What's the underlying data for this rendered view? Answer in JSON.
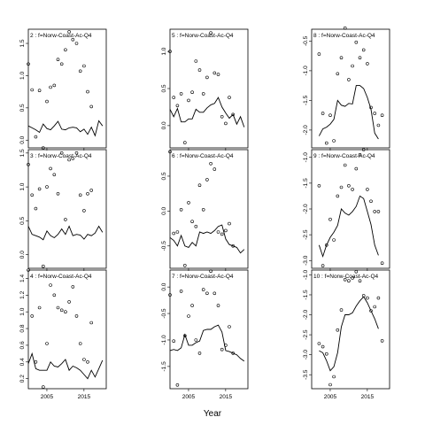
{
  "chart_data": {
    "type": "line",
    "xlabel": "Year",
    "point_style": "open-circle",
    "line_style": "solid-black",
    "panels": [
      {
        "title": "2 : f=Norw-Coast-Ac-Q4",
        "x": [
          2000,
          2001,
          2002,
          2003,
          2004,
          2005,
          2006,
          2007,
          2008,
          2009,
          2010,
          2011,
          2012,
          2013,
          2014,
          2015,
          2016,
          2017,
          2018,
          2019,
          2020
        ],
        "fitted": [
          0.22,
          0.19,
          0.16,
          0.12,
          0.25,
          0.18,
          0.16,
          0.22,
          0.29,
          0.17,
          0.16,
          0.19,
          0.2,
          0.19,
          0.13,
          0.17,
          0.09,
          0.2,
          0.07,
          0.3,
          0.22
        ],
        "observed": [
          1.18,
          0.78,
          0.05,
          0.77,
          -0.12,
          0.6,
          0.82,
          0.85,
          1.25,
          1.18,
          1.4,
          1.68,
          1.56,
          1.5,
          1.07,
          1.15,
          0.75,
          0.52
        ],
        "obs_x": [
          2000,
          2001,
          2002,
          2003,
          2004,
          2005,
          2006,
          2007,
          2008,
          2009,
          2010,
          2011,
          2012,
          2013,
          2014,
          2015,
          2016,
          2017
        ],
        "ylim": [
          -0.12,
          1.72
        ],
        "yticks": [
          0.0,
          0.5,
          1.0,
          1.5
        ],
        "ytick_labels": [
          "0.0",
          "0.5",
          "1.0",
          "1.5"
        ]
      },
      {
        "title": "5 : f=Norw-Coast-Ac-Q4",
        "x": [
          2000,
          2001,
          2002,
          2003,
          2004,
          2005,
          2006,
          2007,
          2008,
          2009,
          2010,
          2011,
          2012,
          2013,
          2014,
          2015,
          2016,
          2017,
          2018,
          2019,
          2020
        ],
        "fitted": [
          0.22,
          0.12,
          0.23,
          0.05,
          0.05,
          0.09,
          0.09,
          0.22,
          0.18,
          0.18,
          0.24,
          0.28,
          0.3,
          0.38,
          0.25,
          0.17,
          0.1,
          0.15,
          0.02,
          0.12,
          -0.02
        ],
        "observed": [
          1.0,
          0.38,
          0.27,
          0.43,
          -0.23,
          0.34,
          0.45,
          0.87,
          0.75,
          0.43,
          0.65,
          1.25,
          0.71,
          0.69,
          0.12,
          0.03,
          0.38,
          0.15
        ],
        "obs_x": [
          2000,
          2001,
          2002,
          2003,
          2004,
          2005,
          2006,
          2007,
          2008,
          2009,
          2010,
          2011,
          2012,
          2013,
          2014,
          2015,
          2016,
          2017
        ],
        "ylim": [
          -0.3,
          1.3
        ],
        "yticks": [
          0.0,
          0.5,
          1.0
        ],
        "ytick_labels": [
          "0.0",
          "0.5",
          "1.0"
        ]
      },
      {
        "title": "8 : f=Norw-Coast-Ac-Q4",
        "x": [
          2002,
          2003,
          2004,
          2005,
          2006,
          2007,
          2008,
          2009,
          2010,
          2011,
          2012,
          2013,
          2014,
          2015,
          2016,
          2017,
          2018
        ],
        "fitted": [
          -2.1,
          -1.98,
          -1.95,
          -1.9,
          -1.82,
          -1.5,
          -1.58,
          -1.6,
          -1.55,
          -1.56,
          -1.25,
          -1.25,
          -1.3,
          -1.45,
          -1.65,
          -2.05,
          -2.15
        ],
        "observed": [
          -0.72,
          -1.72,
          -2.22,
          -1.75,
          -2.18,
          -1.05,
          -0.78,
          -0.28,
          -1.15,
          -0.92,
          -0.52,
          -0.78,
          -0.65,
          -0.88,
          -1.62,
          -1.72,
          -1.92,
          -1.75
        ],
        "obs_x": [
          2002,
          2003,
          2004,
          2005,
          2006,
          2007,
          2008,
          2009,
          2010,
          2011,
          2012,
          2013,
          2014,
          2015,
          2016,
          2017,
          2018,
          2019
        ],
        "ylim": [
          -2.3,
          -0.3
        ],
        "yticks": [
          -2.0,
          -1.5,
          -1.0,
          -0.5
        ],
        "ytick_labels": [
          "-2.0",
          "-1.5",
          "-1.0",
          "-0.5"
        ]
      },
      {
        "title": "3 : f=Norw-Coast-Ac-Q4",
        "x": [
          2000,
          2001,
          2002,
          2003,
          2004,
          2005,
          2006,
          2007,
          2008,
          2009,
          2010,
          2011,
          2012,
          2013,
          2014,
          2015,
          2016,
          2017,
          2018,
          2019,
          2020
        ],
        "fitted": [
          0.42,
          0.3,
          0.28,
          0.26,
          0.22,
          0.35,
          0.28,
          0.25,
          0.3,
          0.38,
          0.3,
          0.42,
          0.28,
          0.3,
          0.29,
          0.23,
          0.3,
          0.28,
          0.32,
          0.42,
          0.33
        ],
        "observed": [
          1.33,
          0.88,
          0.68,
          0.97,
          -0.17,
          1.0,
          1.27,
          1.18,
          0.9,
          1.5,
          0.52,
          1.4,
          1.42,
          1.5,
          0.88,
          0.65,
          0.9,
          0.95
        ],
        "obs_x": [
          2000,
          2001,
          2002,
          2003,
          2004,
          2005,
          2006,
          2007,
          2008,
          2009,
          2010,
          2011,
          2012,
          2013,
          2014,
          2015,
          2016,
          2017
        ],
        "ylim": [
          -0.2,
          1.55
        ],
        "yticks": [
          0.0,
          0.5,
          1.0,
          1.5
        ],
        "ytick_labels": [
          "0.0",
          "0.5",
          "1.0",
          "1.5"
        ]
      },
      {
        "title": "6 : f=Norw-Coast-Ac-Q4",
        "x": [
          2000,
          2001,
          2002,
          2003,
          2004,
          2005,
          2006,
          2007,
          2008,
          2009,
          2010,
          2011,
          2012,
          2013,
          2014,
          2015,
          2016,
          2017,
          2018,
          2019,
          2020
        ],
        "fitted": [
          -0.38,
          -0.42,
          -0.5,
          -0.35,
          -0.5,
          -0.52,
          -0.45,
          -0.5,
          -0.3,
          -0.32,
          -0.3,
          -0.32,
          -0.28,
          -0.22,
          -0.2,
          -0.4,
          -0.48,
          -0.5,
          -0.52,
          -0.6,
          -0.55
        ],
        "observed": [
          0.85,
          -0.32,
          -0.3,
          0.02,
          -0.78,
          0.12,
          -0.15,
          -0.22,
          0.37,
          0.02,
          0.45,
          0.68,
          0.6,
          -0.3,
          -0.33,
          -0.28,
          -0.18,
          -0.5
        ],
        "obs_x": [
          2000,
          2001,
          2002,
          2003,
          2004,
          2005,
          2006,
          2007,
          2008,
          2009,
          2010,
          2011,
          2012,
          2013,
          2014,
          2015,
          2016,
          2017
        ],
        "ylim": [
          -0.82,
          0.88
        ],
        "yticks": [
          -0.5,
          0.0,
          0.5
        ],
        "ytick_labels": [
          "-0.5",
          "0.0",
          "0.5"
        ]
      },
      {
        "title": "9 : f=Norw-Coast-Ac-Q4",
        "x": [
          2002,
          2003,
          2004,
          2005,
          2006,
          2007,
          2008,
          2009,
          2010,
          2011,
          2012,
          2013,
          2014,
          2015,
          2016,
          2017,
          2018
        ],
        "fitted": [
          -2.7,
          -2.92,
          -2.7,
          -2.55,
          -2.45,
          -2.32,
          -2.0,
          -2.08,
          -2.12,
          -2.05,
          -1.95,
          -1.75,
          -1.8,
          -2.05,
          -2.3,
          -2.7,
          -2.9
        ],
        "observed": [
          -1.55,
          -3.1,
          -2.7,
          -2.2,
          -2.6,
          -1.75,
          -1.58,
          -1.15,
          -1.55,
          -1.62,
          -1.22,
          -0.95,
          -0.85,
          -1.62,
          -1.85,
          -2.05,
          -2.05,
          -3.05
        ],
        "obs_x": [
          2002,
          2003,
          2004,
          2005,
          2006,
          2007,
          2008,
          2009,
          2010,
          2011,
          2012,
          2013,
          2014,
          2015,
          2016,
          2017,
          2018,
          2019
        ],
        "ylim": [
          -3.15,
          -0.85
        ],
        "yticks": [
          -3.0,
          -2.5,
          -2.0,
          -1.5,
          -1.0
        ],
        "ytick_labels": [
          "-3.0",
          "-2.5",
          "-2.0",
          "-1.5",
          "-1.0"
        ]
      },
      {
        "title": "4 : f=Norw-Coast-Ac-Q4",
        "x": [
          2000,
          2001,
          2002,
          2003,
          2004,
          2005,
          2006,
          2007,
          2008,
          2009,
          2010,
          2011,
          2012,
          2013,
          2014,
          2015,
          2016,
          2017,
          2018,
          2019,
          2020
        ],
        "fitted": [
          0.38,
          0.5,
          0.32,
          0.3,
          0.3,
          0.3,
          0.4,
          0.35,
          0.34,
          0.38,
          0.43,
          0.3,
          0.35,
          0.33,
          0.3,
          0.25,
          0.2,
          0.3,
          0.22,
          0.32,
          0.42
        ],
        "observed": [
          1.5,
          0.95,
          0.4,
          1.05,
          0.1,
          0.62,
          1.32,
          1.2,
          1.05,
          1.02,
          1.0,
          1.12,
          1.3,
          0.95,
          0.62,
          0.43,
          0.4,
          0.87
        ],
        "obs_x": [
          2000,
          2001,
          2002,
          2003,
          2004,
          2005,
          2006,
          2007,
          2008,
          2009,
          2010,
          2011,
          2012,
          2013,
          2014,
          2015,
          2016,
          2017
        ],
        "ylim": [
          0.08,
          1.5
        ],
        "yticks": [
          0.2,
          0.4,
          0.6,
          0.8,
          1.0,
          1.2,
          1.4
        ],
        "ytick_labels": [
          "0.2",
          "0.4",
          "0.6",
          "0.8",
          "1.0",
          "1.2",
          "1.4"
        ]
      },
      {
        "title": "7 : f=Norw-Coast-Ac-Q4",
        "x": [
          2000,
          2001,
          2002,
          2003,
          2004,
          2005,
          2006,
          2007,
          2008,
          2009,
          2010,
          2011,
          2012,
          2013,
          2014,
          2015,
          2016,
          2017,
          2018,
          2019,
          2020
        ],
        "fitted": [
          -1.2,
          -1.18,
          -1.2,
          -1.15,
          -0.9,
          -1.1,
          -1.1,
          -1.05,
          -1.02,
          -0.82,
          -0.8,
          -0.8,
          -0.75,
          -0.72,
          -0.85,
          -1.2,
          -1.22,
          -1.25,
          -1.28,
          -1.35,
          -1.4
        ],
        "observed": [
          -0.15,
          -1.02,
          -1.85,
          -0.08,
          -0.92,
          -0.55,
          -0.35,
          -1.0,
          -1.25,
          -0.05,
          -0.12,
          0.3,
          -0.12,
          -0.35,
          -1.18,
          -1.1,
          -0.75,
          -1.25
        ],
        "obs_x": [
          2000,
          2001,
          2002,
          2003,
          2004,
          2005,
          2006,
          2007,
          2008,
          2009,
          2010,
          2011,
          2012,
          2013,
          2014,
          2015,
          2016,
          2017
        ],
        "ylim": [
          -1.92,
          0.32
        ],
        "yticks": [
          -1.5,
          -1.0,
          -0.5,
          0.0
        ],
        "ytick_labels": [
          "-1.5",
          "-1.0",
          "-0.5",
          "0.0"
        ]
      },
      {
        "title": "10 : f=Norw-Coast-Ac-Q4",
        "x": [
          2002,
          2003,
          2004,
          2005,
          2006,
          2007,
          2008,
          2009,
          2010,
          2011,
          2012,
          2013,
          2014,
          2015,
          2016,
          2017,
          2018
        ],
        "fitted": [
          -2.9,
          -2.95,
          -3.15,
          -3.4,
          -3.3,
          -2.95,
          -2.3,
          -2.0,
          -2.0,
          -1.95,
          -1.78,
          -1.65,
          -1.55,
          -1.7,
          -1.9,
          -2.1,
          -2.35
        ],
        "observed": [
          -2.72,
          -2.8,
          -2.98,
          -3.75,
          -3.55,
          -2.38,
          -1.88,
          -1.12,
          -1.15,
          -1.08,
          -0.92,
          -1.15,
          -1.52,
          -1.58,
          -1.9,
          -1.8,
          -1.58,
          -2.65
        ],
        "obs_x": [
          2002,
          2003,
          2004,
          2005,
          2006,
          2007,
          2008,
          2009,
          2010,
          2011,
          2012,
          2013,
          2014,
          2015,
          2016,
          2017,
          2018,
          2019
        ],
        "ylim": [
          -3.85,
          -0.88
        ],
        "yticks": [
          -3.5,
          -3.0,
          -2.5,
          -2.0,
          -1.5,
          -1.0
        ],
        "ytick_labels": [
          "-3.5",
          "-3.0",
          "-2.5",
          "-2.0",
          "-1.5",
          "-1.0"
        ]
      }
    ],
    "x_tick_values": [
      2005,
      2015
    ],
    "x_tick_labels": [
      "2005",
      "2015"
    ]
  }
}
